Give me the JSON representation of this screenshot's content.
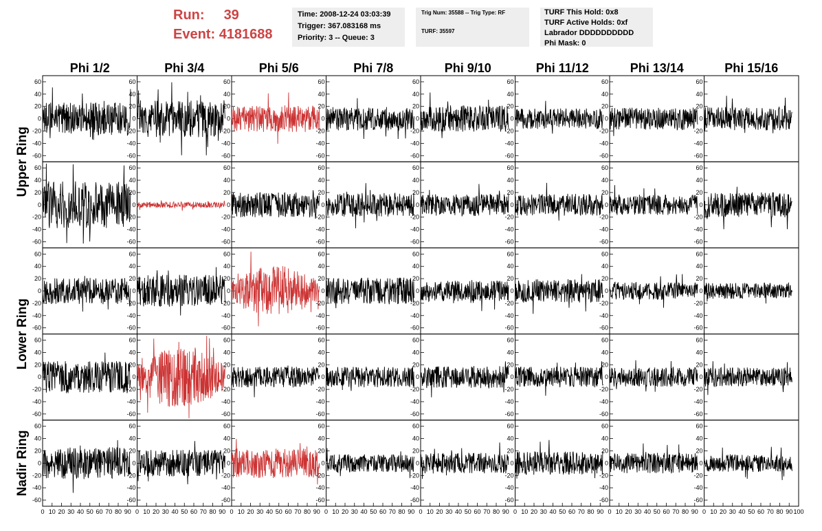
{
  "header": {
    "run_label": "Run:",
    "run_value": "39",
    "event_label": "Event:",
    "event_value": "4181688"
  },
  "time_box": {
    "line1": "Time: 2008-12-24 03:03:39",
    "line2": "Trigger: 367.083168 ms",
    "line3": "Priority: 3 -- Queue: 3"
  },
  "trig_box": {
    "line1": "Trig Num: 35588 -- Trig Type: RF",
    "line2": "TURF: 35597"
  },
  "turf_box": {
    "line1": "TURF This Hold: 0x8",
    "line2": "TURF Active Holds: 0xf",
    "line3": "Labrador DDDDDDDDDD",
    "line4": "Phi Mask: 0"
  },
  "colors": {
    "normal_trace": "#000000",
    "triggered_trace": "#cc3333",
    "header_red": "#cc4444",
    "info_box_bg": "#eeeeee"
  },
  "chart_data": {
    "type": "line",
    "description_of_grid": "5 rows x 8 columns of waveform panels",
    "columns": [
      "Phi 1/2",
      "Phi 3/4",
      "Phi 5/6",
      "Phi 7/8",
      "Phi 9/10",
      "Phi 11/12",
      "Phi 13/14",
      "Phi 15/16"
    ],
    "row_groups": [
      {
        "label": "Upper Ring",
        "rows": [
          0,
          1
        ]
      },
      {
        "label": "Lower Ring",
        "rows": [
          2,
          3
        ]
      },
      {
        "label": "Nadir Ring",
        "rows": [
          4
        ]
      }
    ],
    "ylim": [
      -70,
      70
    ],
    "yticks": [
      -60,
      -40,
      -20,
      0,
      20,
      40,
      60
    ],
    "xlim": [
      0,
      100
    ],
    "xticks": [
      0,
      10,
      20,
      30,
      40,
      50,
      60,
      70,
      80,
      90,
      100
    ],
    "x_extent_of_traces": [
      0,
      93
    ],
    "panels": [
      [
        {
          "amp": 22,
          "trig": false
        },
        {
          "amp": 25,
          "trig": false
        },
        {
          "amp": 18,
          "trig": true
        },
        {
          "amp": 16,
          "trig": false
        },
        {
          "amp": 18,
          "trig": false
        },
        {
          "amp": 14,
          "trig": false
        },
        {
          "amp": 15,
          "trig": false
        },
        {
          "amp": 16,
          "trig": false
        }
      ],
      [
        {
          "amp": 32,
          "trig": false
        },
        {
          "amp": 4,
          "trig": true
        },
        {
          "amp": 17,
          "trig": false
        },
        {
          "amp": 16,
          "trig": false
        },
        {
          "amp": 15,
          "trig": false
        },
        {
          "amp": 15,
          "trig": false
        },
        {
          "amp": 14,
          "trig": false
        },
        {
          "amp": 17,
          "trig": false
        }
      ],
      [
        {
          "amp": 18,
          "trig": false
        },
        {
          "amp": 22,
          "trig": false
        },
        {
          "amp": 24,
          "trig": true
        },
        {
          "amp": 18,
          "trig": false
        },
        {
          "amp": 14,
          "trig": false
        },
        {
          "amp": 16,
          "trig": false
        },
        {
          "amp": 12,
          "trig": false
        },
        {
          "amp": 11,
          "trig": false
        }
      ],
      [
        {
          "amp": 22,
          "trig": false
        },
        {
          "amp": 30,
          "trig": true
        },
        {
          "amp": 14,
          "trig": false
        },
        {
          "amp": 14,
          "trig": false
        },
        {
          "amp": 15,
          "trig": false
        },
        {
          "amp": 14,
          "trig": false
        },
        {
          "amp": 13,
          "trig": false
        },
        {
          "amp": 13,
          "trig": false
        }
      ],
      [
        {
          "amp": 22,
          "trig": false
        },
        {
          "amp": 18,
          "trig": false
        },
        {
          "amp": 20,
          "trig": true
        },
        {
          "amp": 12,
          "trig": false
        },
        {
          "amp": 14,
          "trig": false
        },
        {
          "amp": 16,
          "trig": false
        },
        {
          "amp": 14,
          "trig": false
        },
        {
          "amp": 12,
          "trig": false
        }
      ]
    ]
  }
}
